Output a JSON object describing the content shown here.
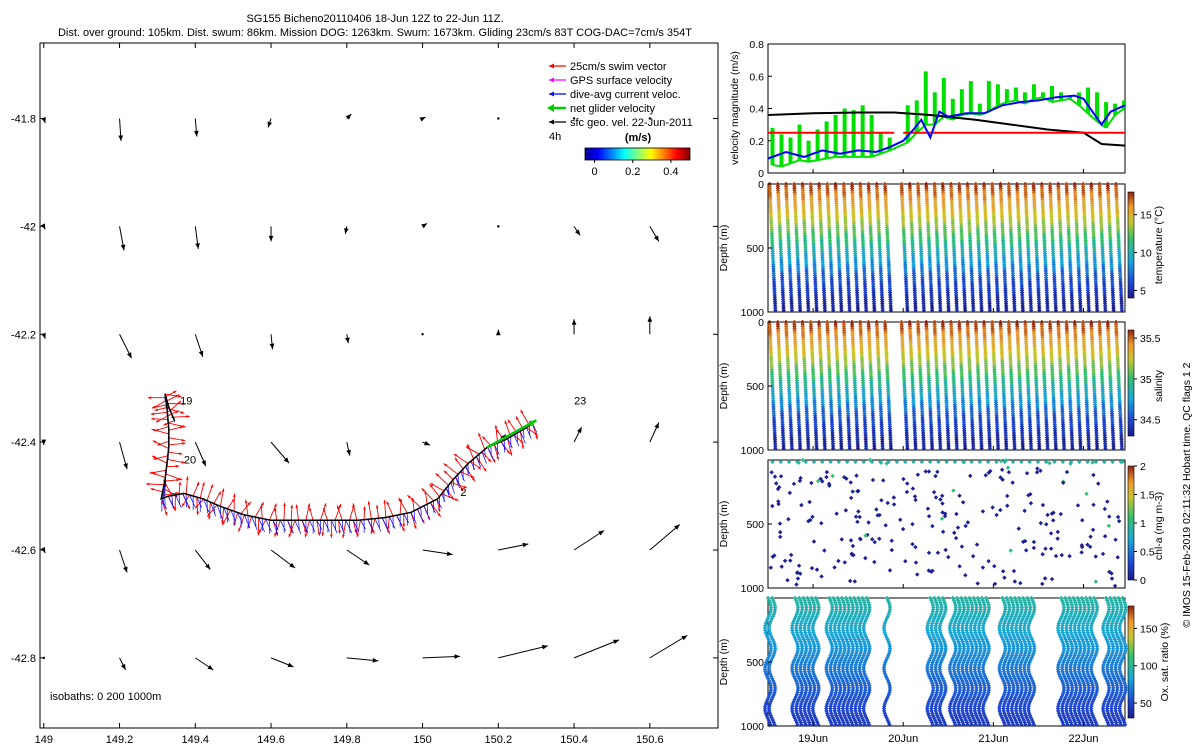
{
  "header": {
    "title": "SG155 Bicheno20110406 18-Jun 12Z to 22-Jun 11Z.",
    "subtitle": "Dist. over ground: 105km. Dist. swum: 86km. Mission DOG: 1263km. Swum: 1673km. Gliding 23cm/s 83T COG-DAC=7cm/s 354T"
  },
  "credit": "© IMOS 15-Feb-2019 02:11:32 Hobart time. QC flags 1  2",
  "chart_data": [
    {
      "type": "scatter",
      "id": "map",
      "xlim": [
        148.99,
        150.78
      ],
      "ylim": [
        -42.93,
        -41.66
      ],
      "x_ticks": [
        149,
        149.2,
        149.4,
        149.6,
        149.8,
        150,
        150.2,
        150.4,
        150.6
      ],
      "x_tick_labels": [
        "149",
        "149.2",
        "149.4",
        "149.6",
        "149.8",
        "150",
        "150.2",
        "150.4",
        "150.6"
      ],
      "y_ticks": [
        -41.8,
        -42,
        -42.2,
        -42.4,
        -42.6,
        -42.8
      ],
      "y_tick_labels": [
        "-41.8",
        "-42",
        "-42.2",
        "-42.4",
        "-42.6",
        "-42.8"
      ],
      "legend": {
        "placement": "top-right",
        "entries": [
          {
            "label": "25cm/s swim vector",
            "color": "#ff0000"
          },
          {
            "label": "GPS surface velocity",
            "color": "#ff00ff"
          },
          {
            "label": "dive-avg current veloc.",
            "color": "#0000ff"
          },
          {
            "label": "net glider velocity",
            "color": "#00cc00"
          },
          {
            "label": "sfc geo. vel. 22-Jun-2011",
            "color": "#000000"
          }
        ],
        "scale_label": "4h"
      },
      "colorbar": {
        "label": "(m/s)",
        "ticks": [
          0,
          0.2,
          0.4
        ],
        "tick_labels": [
          "0",
          "0.2",
          "0.4"
        ],
        "range": [
          -0.05,
          0.5
        ]
      },
      "isobath_note": "isobaths: 0   200  1000m",
      "day_labels": [
        {
          "text": "19",
          "x": 149.36,
          "y": -42.33
        },
        {
          "text": "20",
          "x": 149.37,
          "y": -42.44
        },
        {
          "text": "23",
          "x": 150.4,
          "y": -42.33
        },
        {
          "text": "2",
          "x": 150.1,
          "y": -42.5
        }
      ],
      "track": [
        [
          149.345,
          -42.36
        ],
        [
          149.33,
          -42.335
        ],
        [
          149.32,
          -42.31
        ],
        [
          149.325,
          -42.335
        ],
        [
          149.33,
          -42.375
        ],
        [
          149.33,
          -42.41
        ],
        [
          149.325,
          -42.44
        ],
        [
          149.32,
          -42.47
        ],
        [
          149.31,
          -42.505
        ],
        [
          149.33,
          -42.5
        ],
        [
          149.37,
          -42.495
        ],
        [
          149.42,
          -42.505
        ],
        [
          149.47,
          -42.52
        ],
        [
          149.53,
          -42.535
        ],
        [
          149.6,
          -42.545
        ],
        [
          149.68,
          -42.545
        ],
        [
          149.75,
          -42.545
        ],
        [
          149.83,
          -42.545
        ],
        [
          149.9,
          -42.54
        ],
        [
          149.97,
          -42.53
        ],
        [
          150.04,
          -42.505
        ],
        [
          150.08,
          -42.47
        ],
        [
          150.12,
          -42.44
        ],
        [
          150.17,
          -42.41
        ],
        [
          150.22,
          -42.395
        ],
        [
          150.27,
          -42.375
        ],
        [
          150.29,
          -42.365
        ]
      ],
      "geo_vectors": [
        {
          "x": 149.0,
          "y": -41.8,
          "u": 0.01,
          "v": -0.03
        },
        {
          "x": 149.0,
          "y": -42.0,
          "u": 0.01,
          "v": -0.02
        },
        {
          "x": 149.0,
          "y": -42.2,
          "u": 0.01,
          "v": -0.03
        },
        {
          "x": 149.0,
          "y": -42.4,
          "u": 0.0,
          "v": -0.02
        },
        {
          "x": 149.0,
          "y": -42.6,
          "u": 0.01,
          "v": -0.02
        },
        {
          "x": 149.0,
          "y": -42.8,
          "u": 0.01,
          "v": -0.01
        },
        {
          "x": 149.2,
          "y": -41.8,
          "u": 0.01,
          "v": -0.15
        },
        {
          "x": 149.2,
          "y": -42.0,
          "u": 0.03,
          "v": -0.16
        },
        {
          "x": 149.2,
          "y": -42.2,
          "u": 0.08,
          "v": -0.16
        },
        {
          "x": 149.2,
          "y": -42.4,
          "u": 0.05,
          "v": -0.18
        },
        {
          "x": 149.2,
          "y": -42.6,
          "u": 0.05,
          "v": -0.15
        },
        {
          "x": 149.2,
          "y": -42.8,
          "u": 0.04,
          "v": -0.08
        },
        {
          "x": 149.4,
          "y": -41.8,
          "u": 0.01,
          "v": -0.12
        },
        {
          "x": 149.4,
          "y": -42.0,
          "u": 0.02,
          "v": -0.15
        },
        {
          "x": 149.4,
          "y": -42.2,
          "u": 0.05,
          "v": -0.15
        },
        {
          "x": 149.4,
          "y": -42.4,
          "u": 0.07,
          "v": -0.16
        },
        {
          "x": 149.4,
          "y": -42.6,
          "u": 0.1,
          "v": -0.13
        },
        {
          "x": 149.4,
          "y": -42.8,
          "u": 0.12,
          "v": -0.08
        },
        {
          "x": 149.6,
          "y": -41.8,
          "u": -0.02,
          "v": -0.06
        },
        {
          "x": 149.6,
          "y": -42.0,
          "u": 0.0,
          "v": -0.1
        },
        {
          "x": 149.6,
          "y": -42.2,
          "u": 0.01,
          "v": -0.1
        },
        {
          "x": 149.6,
          "y": -42.4,
          "u": 0.12,
          "v": -0.14
        },
        {
          "x": 149.6,
          "y": -42.6,
          "u": 0.16,
          "v": -0.12
        },
        {
          "x": 149.6,
          "y": -42.8,
          "u": 0.15,
          "v": -0.06
        },
        {
          "x": 149.8,
          "y": -41.8,
          "u": 0.03,
          "v": 0.03
        },
        {
          "x": 149.8,
          "y": -42.0,
          "u": -0.01,
          "v": -0.05
        },
        {
          "x": 149.8,
          "y": -42.2,
          "u": 0.01,
          "v": -0.06
        },
        {
          "x": 149.8,
          "y": -42.4,
          "u": 0.02,
          "v": -0.09
        },
        {
          "x": 149.8,
          "y": -42.6,
          "u": 0.15,
          "v": -0.1
        },
        {
          "x": 149.8,
          "y": -42.8,
          "u": 0.21,
          "v": -0.02
        },
        {
          "x": 150.0,
          "y": -41.8,
          "u": 0.02,
          "v": 0.01
        },
        {
          "x": 150.0,
          "y": -42.0,
          "u": 0.03,
          "v": 0.02
        },
        {
          "x": 150.0,
          "y": -42.2,
          "u": 0.0,
          "v": -0.01
        },
        {
          "x": 150.0,
          "y": -42.4,
          "u": 0.05,
          "v": -0.02
        },
        {
          "x": 150.0,
          "y": -42.6,
          "u": 0.2,
          "v": -0.03
        },
        {
          "x": 150.0,
          "y": -42.8,
          "u": 0.25,
          "v": 0.01
        },
        {
          "x": 150.2,
          "y": -41.8,
          "u": 0.0,
          "v": 0.0
        },
        {
          "x": 150.2,
          "y": -42.0,
          "u": 0.01,
          "v": 0.01
        },
        {
          "x": 150.2,
          "y": -42.2,
          "u": 0.0,
          "v": 0.03
        },
        {
          "x": 150.2,
          "y": -42.4,
          "u": 0.05,
          "v": 0.05
        },
        {
          "x": 150.2,
          "y": -42.6,
          "u": 0.2,
          "v": 0.04
        },
        {
          "x": 150.2,
          "y": -42.8,
          "u": 0.33,
          "v": 0.08
        },
        {
          "x": 150.4,
          "y": -41.8,
          "u": 0.0,
          "v": 0.0
        },
        {
          "x": 150.4,
          "y": -42.0,
          "u": 0.04,
          "v": -0.06
        },
        {
          "x": 150.4,
          "y": -42.2,
          "u": 0.0,
          "v": 0.1
        },
        {
          "x": 150.4,
          "y": -42.4,
          "u": 0.05,
          "v": 0.1
        },
        {
          "x": 150.4,
          "y": -42.6,
          "u": 0.2,
          "v": 0.13
        },
        {
          "x": 150.4,
          "y": -42.8,
          "u": 0.3,
          "v": 0.12
        },
        {
          "x": 150.6,
          "y": -41.8,
          "u": 0.0,
          "v": 0.0
        },
        {
          "x": 150.6,
          "y": -42.0,
          "u": 0.06,
          "v": -0.1
        },
        {
          "x": 150.6,
          "y": -42.2,
          "u": 0.0,
          "v": 0.12
        },
        {
          "x": 150.6,
          "y": -42.4,
          "u": 0.06,
          "v": 0.13
        },
        {
          "x": 150.6,
          "y": -42.6,
          "u": 0.2,
          "v": 0.17
        },
        {
          "x": 150.6,
          "y": -42.8,
          "u": 0.25,
          "v": 0.15
        }
      ]
    },
    {
      "type": "line",
      "id": "velocity",
      "ylabel": "velocity magnitude (m/s)",
      "ylim": [
        0,
        0.8
      ],
      "y_ticks": [
        0,
        0.2,
        0.4,
        0.6,
        0.8
      ],
      "y_tick_labels": [
        "0",
        "0.2",
        "0.4",
        "0.6",
        "0.8"
      ],
      "xlim": [
        18.5,
        22.46
      ],
      "series": [
        {
          "color": "#000000",
          "x": [
            18.5,
            19.0,
            19.5,
            19.9,
            20.3,
            20.8,
            21.2,
            21.6,
            22.0,
            22.2,
            22.46
          ],
          "y": [
            0.36,
            0.37,
            0.375,
            0.375,
            0.36,
            0.33,
            0.3,
            0.27,
            0.25,
            0.18,
            0.17
          ]
        },
        {
          "color": "#ff0000",
          "x": [
            18.5,
            19.9
          ],
          "y": [
            0.25,
            0.25
          ]
        },
        {
          "color": "#ff0000",
          "x": [
            20.0,
            22.46
          ],
          "y": [
            0.25,
            0.25
          ]
        },
        {
          "color": "#0000ff",
          "x": [
            18.5,
            18.7,
            18.9,
            19.1,
            19.3,
            19.5,
            19.7,
            19.85,
            20.0,
            20.1,
            20.2,
            20.3,
            20.4,
            20.5,
            20.7,
            20.9,
            21.1,
            21.3,
            21.5,
            21.7,
            21.9,
            22.0,
            22.1,
            22.2,
            22.3,
            22.46
          ],
          "y": [
            0.09,
            0.13,
            0.1,
            0.14,
            0.12,
            0.14,
            0.13,
            0.16,
            0.2,
            0.26,
            0.33,
            0.22,
            0.38,
            0.35,
            0.37,
            0.37,
            0.42,
            0.44,
            0.45,
            0.47,
            0.48,
            0.46,
            0.38,
            0.3,
            0.38,
            0.42
          ]
        }
      ],
      "net_velocity_green": {
        "x": [
          18.55,
          18.65,
          18.75,
          18.85,
          18.95,
          19.05,
          19.15,
          19.25,
          19.35,
          19.45,
          19.55,
          19.65,
          19.75,
          19.85,
          20.05,
          20.15,
          20.25,
          20.35,
          20.45,
          20.55,
          20.65,
          20.75,
          20.85,
          20.95,
          21.05,
          21.15,
          21.25,
          21.35,
          21.45,
          21.55,
          21.65,
          21.75,
          21.85,
          21.95,
          22.05,
          22.15,
          22.25,
          22.35,
          22.45
        ],
        "y_low": [
          0.05,
          0.04,
          0.06,
          0.08,
          0.07,
          0.08,
          0.09,
          0.1,
          0.1,
          0.1,
          0.1,
          0.1,
          0.12,
          0.14,
          0.19,
          0.25,
          0.3,
          0.3,
          0.35,
          0.33,
          0.36,
          0.37,
          0.36,
          0.38,
          0.42,
          0.44,
          0.45,
          0.43,
          0.46,
          0.47,
          0.44,
          0.45,
          0.46,
          0.42,
          0.37,
          0.32,
          0.28,
          0.36,
          0.4
        ],
        "y_high": [
          0.28,
          0.24,
          0.22,
          0.3,
          0.2,
          0.27,
          0.32,
          0.36,
          0.4,
          0.39,
          0.42,
          0.36,
          0.25,
          0.22,
          0.42,
          0.45,
          0.63,
          0.5,
          0.59,
          0.46,
          0.52,
          0.57,
          0.43,
          0.57,
          0.55,
          0.52,
          0.53,
          0.5,
          0.55,
          0.5,
          0.54,
          0.5,
          0.48,
          0.5,
          0.53,
          0.5,
          0.44,
          0.43,
          0.45
        ]
      }
    },
    {
      "type": "scatter",
      "id": "temperature",
      "ylabel": "Depth (m)",
      "colorbar_label": "temperature (°C)",
      "colorbar_range": [
        4,
        18
      ],
      "colorbar_ticks": [
        5,
        10,
        15
      ],
      "colorbar_tick_labels": [
        "5",
        "10",
        "15"
      ],
      "ylim": [
        1000,
        0
      ],
      "y_ticks": [
        0,
        500,
        1000
      ],
      "y_tick_labels": [
        "0",
        "500",
        "1000"
      ],
      "xlim": [
        18.5,
        22.46
      ],
      "profile_profile": {
        "surface": 17.5,
        "bottom": 4.2
      },
      "gap": [
        19.9,
        19.95
      ]
    },
    {
      "type": "scatter",
      "id": "salinity",
      "ylabel": "Depth (m)",
      "colorbar_label": "salinity",
      "colorbar_range": [
        34.3,
        35.6
      ],
      "colorbar_ticks": [
        34.5,
        35,
        35.5
      ],
      "colorbar_tick_labels": [
        "34.5",
        "35",
        "35.5"
      ],
      "ylim": [
        1000,
        0
      ],
      "y_ticks": [
        0,
        500,
        1000
      ],
      "y_tick_labels": [
        "0",
        "500",
        "1000"
      ],
      "xlim": [
        18.5,
        22.46
      ],
      "profile_profile": {
        "surface": 35.55,
        "bottom": 34.35
      },
      "gap": [
        19.9,
        19.95
      ]
    },
    {
      "type": "scatter",
      "id": "chla",
      "ylabel": "Depth (m)",
      "colorbar_label": "chl-a (mg m-3)",
      "colorbar_range": [
        0,
        2
      ],
      "colorbar_ticks": [
        0,
        0.5,
        1,
        1.5,
        2
      ],
      "colorbar_tick_labels": [
        "0",
        "0.5",
        "1",
        "1.5",
        "2"
      ],
      "ylim": [
        1000,
        0
      ],
      "y_ticks": [
        500,
        1000
      ],
      "y_tick_labels": [
        "500",
        "1000"
      ],
      "xlim": [
        18.5,
        22.46
      ]
    },
    {
      "type": "scatter",
      "id": "oxygen",
      "ylabel": "Depth (m)",
      "colorbar_label": "Ox. sat. ratio (%)",
      "colorbar_range": [
        30,
        180
      ],
      "colorbar_ticks": [
        50,
        100,
        150
      ],
      "colorbar_tick_labels": [
        "50",
        "100",
        "150"
      ],
      "ylim": [
        1000,
        0
      ],
      "y_ticks": [
        500,
        1000
      ],
      "y_tick_labels": [
        "500",
        "1000"
      ],
      "xlim": [
        18.5,
        22.46
      ],
      "x_ticks": [
        19,
        20,
        21,
        22
      ],
      "x_tick_labels": [
        "19Jun",
        "20Jun",
        "21Jun",
        "22Jun"
      ],
      "profile_segments": [
        [
          18.5,
          18.58
        ],
        [
          18.8,
          19.05
        ],
        [
          19.18,
          19.62
        ],
        [
          19.82,
          19.85
        ],
        [
          20.3,
          20.45
        ],
        [
          20.55,
          20.92
        ],
        [
          21.1,
          21.45
        ],
        [
          21.75,
          22.12
        ],
        [
          22.25,
          22.45
        ]
      ]
    }
  ]
}
